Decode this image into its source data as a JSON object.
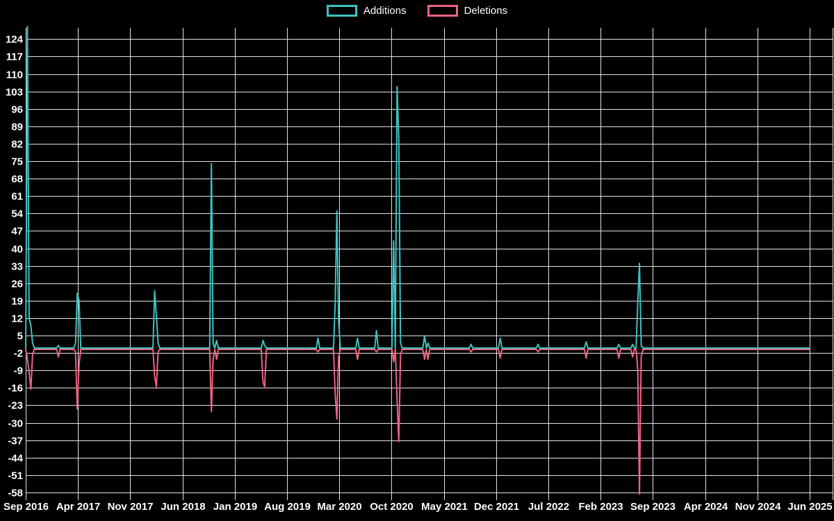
{
  "legend": {
    "additions_label": "Additions",
    "deletions_label": "Deletions"
  },
  "colors": {
    "additions": "#3cc3c3",
    "deletions": "#ef6481",
    "grid": "#e4e4e4",
    "background": "#000000",
    "text": "#ffffff"
  },
  "chart_data": {
    "type": "line",
    "title": "",
    "xlabel": "",
    "ylabel": "",
    "grid": true,
    "legend_position": "top-center",
    "x_axis_unit": "weeks since Sep 2016",
    "weeks_total": 456,
    "x_tick_labels": [
      "Sep 2016",
      "Apr 2017",
      "Nov 2017",
      "Jun 2018",
      "Jan 2019",
      "Aug 2019",
      "Mar 2020",
      "Oct 2020",
      "May 2021",
      "Dec 2021",
      "Jul 2022",
      "Feb 2023",
      "Sep 2023",
      "Apr 2024",
      "Nov 2024",
      "Jun 2025"
    ],
    "y_ticks": [
      124,
      117,
      110,
      103,
      96,
      89,
      82,
      75,
      68,
      61,
      54,
      47,
      40,
      33,
      26,
      19,
      12,
      5,
      -2,
      -9,
      -16,
      -23,
      -30,
      -37,
      -44,
      -51,
      -58
    ],
    "y_step": 7,
    "ylim": [
      -60,
      129
    ],
    "baseline_value": 0,
    "series": [
      {
        "name": "Additions",
        "color_key": "additions",
        "default_value": 0,
        "points_sparse": {
          "1": 129,
          "2": 12,
          "3": 9,
          "4": 2,
          "19": 1,
          "29": 2,
          "30": 22,
          "31": 19,
          "75": 23,
          "76": 13,
          "77": 2,
          "108": 74,
          "109": 2,
          "111": 3,
          "138": 3,
          "139": 1,
          "170": 4,
          "180": 18,
          "181": 55,
          "182": 11,
          "193": 4,
          "204": 7,
          "214": 43,
          "216": 105,
          "217": 84,
          "218": 2,
          "232": 5,
          "234": 2,
          "259": 1.5,
          "276": 4,
          "298": 1.5,
          "326": 2.5,
          "345": 1.5,
          "353": 1.5,
          "356": 18,
          "357": 34,
          "358": 1
        }
      },
      {
        "name": "Deletions",
        "color_key": "deletions",
        "default_value": 0,
        "points_sparse": {
          "1": -4,
          "2": -9,
          "3": -16,
          "4": -2,
          "19": -3,
          "29": -1,
          "30": -24,
          "31": -6,
          "75": -11,
          "76": -15,
          "77": -1,
          "108": -25,
          "109": -4,
          "111": -4,
          "138": -13,
          "139": -15,
          "170": -1,
          "180": -18,
          "181": -28,
          "182": -3,
          "193": -4,
          "204": -1,
          "214": -5,
          "216": -20,
          "217": -37,
          "218": -2,
          "232": -4,
          "234": -4,
          "259": -1,
          "276": -3.5,
          "298": -1,
          "326": -3.5,
          "345": -3.5,
          "353": -3,
          "356": -8,
          "357": -58,
          "358": -3
        }
      }
    ]
  }
}
